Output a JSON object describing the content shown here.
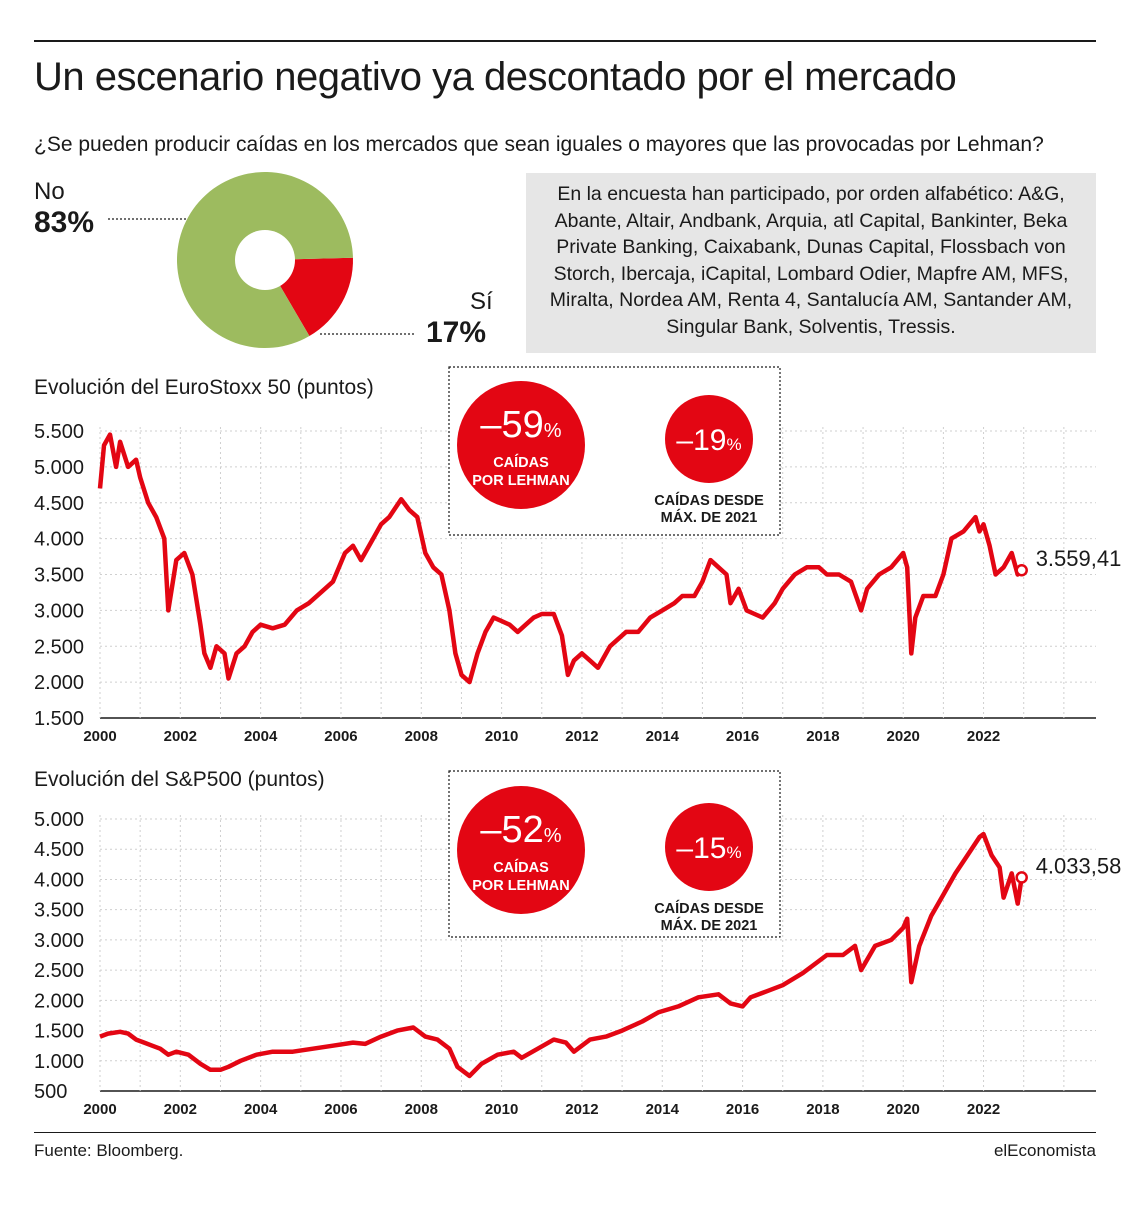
{
  "header": {
    "title": "Un escenario negativo ya descontado por el mercado",
    "subtitle": "¿Se pueden producir caídas en los mercados que sean iguales o mayores que las provocadas por Lehman?"
  },
  "pie": {
    "no_label": "No",
    "no_pct": "83%",
    "si_label": "Sí",
    "si_pct": "17%",
    "colors": {
      "no": "#9dbb5f",
      "si": "#e30613"
    }
  },
  "survey_note": "En la encuesta han participado, por orden alfabético: A&G, Abante, Altair, Andbank, Arquia, atl Capital, Bankinter, Beka Private Banking, Caixabank, Dunas Capital, Flossbach von Storch, Ibercaja, iCapital, Lombard Odier, Mapfre AM, MFS, Miralta, Nordea AM, Renta 4, Santalucía AM, Santander AM, Singular Bank, Solventis, Tressis.",
  "footer": {
    "source": "Fuente: Bloomberg.",
    "brand": "elEconomista"
  },
  "chart_data": [
    {
      "type": "pie",
      "categories": [
        "No",
        "Sí"
      ],
      "values": [
        83,
        17
      ],
      "colors": [
        "#9dbb5f",
        "#e30613"
      ]
    },
    {
      "type": "line",
      "title": "Evolución del EuroStoxx 50 (puntos)",
      "ylim": [
        1500,
        5500
      ],
      "yticks": [
        5500,
        5000,
        4500,
        4000,
        3500,
        3000,
        2500,
        2000,
        1500
      ],
      "ytick_labels": [
        "5.500",
        "5.000",
        "4.500",
        "4.000",
        "3.500",
        "3.000",
        "2.500",
        "2.000",
        "1.500"
      ],
      "xlim": [
        2000,
        2024.8
      ],
      "xticks": [
        "2000",
        "2002",
        "2004",
        "2006",
        "2008",
        "2010",
        "2012",
        "2014",
        "2016",
        "2018",
        "2020",
        "2022"
      ],
      "last_value_label": "3.559,41",
      "color": "#e30613",
      "badges": {
        "big": {
          "value": "–59",
          "unit": "%",
          "text": [
            "CAÍDAS",
            "POR LEHMAN"
          ]
        },
        "small": {
          "value": "–19",
          "unit": "%",
          "text": [
            "CAÍDAS DESDE",
            "MÁX. DE 2021"
          ]
        }
      },
      "x": [
        2000.0,
        2000.1,
        2000.25,
        2000.4,
        2000.5,
        2000.7,
        2000.9,
        2001.0,
        2001.2,
        2001.4,
        2001.6,
        2001.7,
        2001.9,
        2002.1,
        2002.3,
        2002.5,
        2002.6,
        2002.75,
        2002.9,
        2003.1,
        2003.2,
        2003.4,
        2003.6,
        2003.8,
        2004.0,
        2004.3,
        2004.6,
        2004.9,
        2005.2,
        2005.5,
        2005.8,
        2006.1,
        2006.3,
        2006.5,
        2006.8,
        2007.0,
        2007.2,
        2007.5,
        2007.7,
        2007.9,
        2008.1,
        2008.3,
        2008.5,
        2008.7,
        2008.85,
        2009.0,
        2009.2,
        2009.4,
        2009.6,
        2009.8,
        2010.0,
        2010.2,
        2010.4,
        2010.6,
        2010.8,
        2011.0,
        2011.3,
        2011.5,
        2011.65,
        2011.8,
        2012.0,
        2012.2,
        2012.4,
        2012.5,
        2012.7,
        2012.9,
        2013.1,
        2013.4,
        2013.7,
        2014.0,
        2014.3,
        2014.5,
        2014.8,
        2015.0,
        2015.2,
        2015.4,
        2015.6,
        2015.7,
        2015.9,
        2016.1,
        2016.3,
        2016.5,
        2016.8,
        2017.0,
        2017.3,
        2017.6,
        2017.9,
        2018.1,
        2018.4,
        2018.7,
        2018.95,
        2019.1,
        2019.4,
        2019.7,
        2020.0,
        2020.1,
        2020.2,
        2020.3,
        2020.5,
        2020.8,
        2021.0,
        2021.2,
        2021.5,
        2021.8,
        2021.9,
        2022.0,
        2022.15,
        2022.3,
        2022.5,
        2022.7,
        2022.85,
        2022.95
      ],
      "values": [
        4700,
        5300,
        5450,
        5000,
        5350,
        5000,
        5100,
        4850,
        4500,
        4300,
        4000,
        3000,
        3700,
        3800,
        3500,
        2800,
        2400,
        2200,
        2500,
        2400,
        2050,
        2400,
        2500,
        2700,
        2800,
        2750,
        2800,
        3000,
        3100,
        3250,
        3400,
        3800,
        3900,
        3700,
        4000,
        4200,
        4300,
        4550,
        4400,
        4300,
        3800,
        3600,
        3500,
        3000,
        2400,
        2100,
        2000,
        2400,
        2700,
        2900,
        2850,
        2800,
        2700,
        2800,
        2900,
        2950,
        2950,
        2650,
        2100,
        2300,
        2400,
        2300,
        2200,
        2300,
        2500,
        2600,
        2700,
        2700,
        2900,
        3000,
        3100,
        3200,
        3200,
        3400,
        3700,
        3600,
        3500,
        3100,
        3300,
        3000,
        2950,
        2900,
        3100,
        3300,
        3500,
        3600,
        3600,
        3500,
        3500,
        3400,
        3000,
        3300,
        3500,
        3600,
        3800,
        3600,
        2400,
        2900,
        3200,
        3200,
        3500,
        4000,
        4100,
        4300,
        4100,
        4200,
        3900,
        3500,
        3600,
        3800,
        3500,
        3559.41
      ]
    },
    {
      "type": "line",
      "title": "Evolución del S&P500 (puntos)",
      "ylim": [
        500,
        5000
      ],
      "yticks": [
        5000,
        4500,
        4000,
        3500,
        3000,
        2500,
        2000,
        1500,
        1000,
        500
      ],
      "ytick_labels": [
        "5.000",
        "4.500",
        "4.000",
        "3.500",
        "3.000",
        "2.500",
        "2.000",
        "1.500",
        "1.000",
        "500"
      ],
      "xlim": [
        2000,
        2024.8
      ],
      "xticks": [
        "2000",
        "2002",
        "2004",
        "2006",
        "2008",
        "2010",
        "2012",
        "2014",
        "2016",
        "2018",
        "2020",
        "2022"
      ],
      "last_value_label": "4.033,58",
      "color": "#e30613",
      "badges": {
        "big": {
          "value": "–52",
          "unit": "%",
          "text": [
            "CAÍDAS",
            "POR LEHMAN"
          ]
        },
        "small": {
          "value": "–15",
          "unit": "%",
          "text": [
            "CAÍDAS DESDE",
            "MÁX. DE 2021"
          ]
        }
      },
      "x": [
        2000.0,
        2000.2,
        2000.5,
        2000.7,
        2000.9,
        2001.1,
        2001.3,
        2001.5,
        2001.7,
        2001.9,
        2002.2,
        2002.5,
        2002.75,
        2003.0,
        2003.2,
        2003.5,
        2003.9,
        2004.3,
        2004.8,
        2005.3,
        2005.8,
        2006.3,
        2006.6,
        2007.0,
        2007.4,
        2007.8,
        2008.1,
        2008.4,
        2008.7,
        2008.9,
        2009.2,
        2009.5,
        2009.9,
        2010.3,
        2010.5,
        2010.9,
        2011.3,
        2011.6,
        2011.8,
        2012.2,
        2012.6,
        2013.0,
        2013.5,
        2013.9,
        2014.4,
        2014.9,
        2015.4,
        2015.7,
        2016.0,
        2016.2,
        2016.6,
        2017.0,
        2017.5,
        2017.9,
        2018.1,
        2018.5,
        2018.8,
        2018.95,
        2019.3,
        2019.7,
        2020.0,
        2020.1,
        2020.2,
        2020.4,
        2020.7,
        2021.0,
        2021.3,
        2021.6,
        2021.9,
        2022.0,
        2022.2,
        2022.4,
        2022.5,
        2022.7,
        2022.85,
        2022.95
      ],
      "values": [
        1400,
        1450,
        1480,
        1450,
        1350,
        1300,
        1250,
        1200,
        1100,
        1150,
        1100,
        950,
        850,
        850,
        900,
        1000,
        1100,
        1150,
        1150,
        1200,
        1250,
        1300,
        1280,
        1400,
        1500,
        1550,
        1400,
        1350,
        1200,
        900,
        750,
        950,
        1100,
        1150,
        1050,
        1200,
        1350,
        1300,
        1150,
        1350,
        1400,
        1500,
        1650,
        1800,
        1900,
        2050,
        2100,
        1950,
        1900,
        2050,
        2150,
        2250,
        2450,
        2650,
        2750,
        2750,
        2900,
        2500,
        2900,
        3000,
        3200,
        3350,
        2300,
        2900,
        3400,
        3750,
        4100,
        4400,
        4700,
        4750,
        4400,
        4200,
        3700,
        4100,
        3600,
        4033.58
      ]
    }
  ]
}
